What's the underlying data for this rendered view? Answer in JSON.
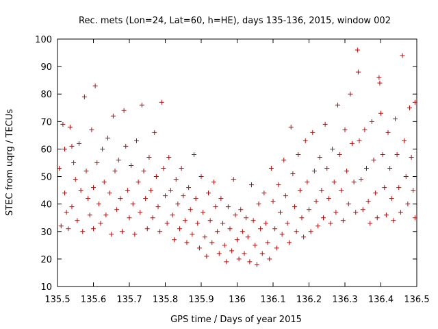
{
  "chart_data": {
    "type": "scatter",
    "title": "Rec. mets (Lon=24, Lat=60, h=HE), days 135-136, 2015, window 002",
    "xlabel": "GPS time / Days of year 2015",
    "ylabel": "STEC from uqrg / TECUs",
    "xlim": [
      135.5,
      136.5
    ],
    "ylim": [
      10,
      100
    ],
    "x_ticks": [
      135.5,
      135.6,
      135.7,
      135.8,
      135.9,
      136.0,
      136.1,
      136.2,
      136.3,
      136.4,
      136.5
    ],
    "x_tick_labels": [
      "135.5",
      "135.6",
      "135.7",
      "135.8",
      "135.9",
      "136",
      "136.1",
      "136.2",
      "136.3",
      "136.4",
      "136.5"
    ],
    "y_ticks": [
      10,
      20,
      30,
      40,
      50,
      60,
      70,
      80,
      90,
      100
    ],
    "y_tick_labels": [
      "10",
      "20",
      "30",
      "40",
      "50",
      "60",
      "70",
      "80",
      "90",
      "100"
    ],
    "grid": false,
    "legend": "none",
    "marker": "+",
    "color": "#cc0000",
    "series": [
      {
        "points": [
          [
            135.505,
            53
          ],
          [
            135.51,
            32
          ],
          [
            135.515,
            69
          ],
          [
            135.52,
            60
          ],
          [
            135.52,
            44
          ],
          [
            135.525,
            37
          ],
          [
            135.53,
            31
          ],
          [
            135.535,
            68
          ],
          [
            135.54,
            61
          ],
          [
            135.54,
            39
          ],
          [
            135.545,
            55
          ],
          [
            135.55,
            49
          ],
          [
            135.555,
            34
          ],
          [
            135.56,
            62
          ],
          [
            135.565,
            45
          ],
          [
            135.57,
            30
          ],
          [
            135.575,
            79
          ],
          [
            135.58,
            52
          ],
          [
            135.585,
            42
          ],
          [
            135.59,
            36
          ],
          [
            135.595,
            67
          ],
          [
            135.6,
            46
          ],
          [
            135.6,
            31
          ],
          [
            135.605,
            83
          ],
          [
            135.61,
            55
          ],
          [
            135.615,
            40
          ],
          [
            135.62,
            33
          ],
          [
            135.625,
            60
          ],
          [
            135.63,
            48
          ],
          [
            135.635,
            36
          ],
          [
            135.64,
            64
          ],
          [
            135.645,
            44
          ],
          [
            135.65,
            29
          ],
          [
            135.655,
            72
          ],
          [
            135.66,
            52
          ],
          [
            135.665,
            38
          ],
          [
            135.67,
            56
          ],
          [
            135.675,
            42
          ],
          [
            135.68,
            30
          ],
          [
            135.685,
            74
          ],
          [
            135.69,
            61
          ],
          [
            135.695,
            45
          ],
          [
            135.7,
            35
          ],
          [
            135.705,
            54
          ],
          [
            135.71,
            40
          ],
          [
            135.715,
            29
          ],
          [
            135.72,
            63
          ],
          [
            135.725,
            48
          ],
          [
            135.73,
            37
          ],
          [
            135.735,
            76
          ],
          [
            135.74,
            52
          ],
          [
            135.745,
            42
          ],
          [
            135.75,
            31
          ],
          [
            135.755,
            57
          ],
          [
            135.76,
            45
          ],
          [
            135.765,
            35
          ],
          [
            135.77,
            66
          ],
          [
            135.775,
            50
          ],
          [
            135.78,
            39
          ],
          [
            135.785,
            30
          ],
          [
            135.79,
            77
          ],
          [
            135.795,
            53
          ],
          [
            135.8,
            43
          ],
          [
            135.805,
            33
          ],
          [
            135.81,
            57
          ],
          [
            135.815,
            45
          ],
          [
            135.82,
            36
          ],
          [
            135.825,
            27
          ],
          [
            135.83,
            49
          ],
          [
            135.835,
            40
          ],
          [
            135.84,
            31
          ],
          [
            135.845,
            53
          ],
          [
            135.85,
            43
          ],
          [
            135.855,
            34
          ],
          [
            135.86,
            26
          ],
          [
            135.865,
            46
          ],
          [
            135.87,
            38
          ],
          [
            135.875,
            29
          ],
          [
            135.88,
            58
          ],
          [
            135.885,
            42
          ],
          [
            135.89,
            33
          ],
          [
            135.895,
            24
          ],
          [
            135.9,
            50
          ],
          [
            135.905,
            37
          ],
          [
            135.91,
            28
          ],
          [
            135.915,
            21
          ],
          [
            135.92,
            44
          ],
          [
            135.925,
            34
          ],
          [
            135.93,
            26
          ],
          [
            135.935,
            48
          ],
          [
            135.94,
            39
          ],
          [
            135.945,
            30
          ],
          [
            135.95,
            22
          ],
          [
            135.955,
            42
          ],
          [
            135.96,
            33
          ],
          [
            135.965,
            25
          ],
          [
            135.97,
            19
          ],
          [
            135.975,
            39
          ],
          [
            135.98,
            31
          ],
          [
            135.985,
            23
          ],
          [
            135.99,
            49
          ],
          [
            135.995,
            36
          ],
          [
            136.0,
            27
          ],
          [
            136.005,
            20
          ],
          [
            136.01,
            38
          ],
          [
            136.015,
            30
          ],
          [
            136.02,
            22
          ],
          [
            136.025,
            35
          ],
          [
            136.03,
            28
          ],
          [
            136.035,
            19
          ],
          [
            136.04,
            47
          ],
          [
            136.045,
            34
          ],
          [
            136.05,
            25
          ],
          [
            136.055,
            18
          ],
          [
            136.06,
            40
          ],
          [
            136.065,
            31
          ],
          [
            136.07,
            22
          ],
          [
            136.075,
            44
          ],
          [
            136.08,
            33
          ],
          [
            136.085,
            26
          ],
          [
            136.09,
            20
          ],
          [
            136.095,
            53
          ],
          [
            136.1,
            41
          ],
          [
            136.105,
            31
          ],
          [
            136.11,
            24
          ],
          [
            136.115,
            47
          ],
          [
            136.12,
            37
          ],
          [
            136.125,
            29
          ],
          [
            136.13,
            56
          ],
          [
            136.135,
            43
          ],
          [
            136.14,
            33
          ],
          [
            136.145,
            26
          ],
          [
            136.15,
            68
          ],
          [
            136.155,
            51
          ],
          [
            136.16,
            39
          ],
          [
            136.165,
            30
          ],
          [
            136.17,
            58
          ],
          [
            136.175,
            45
          ],
          [
            136.18,
            35
          ],
          [
            136.185,
            28
          ],
          [
            136.19,
            63
          ],
          [
            136.195,
            48
          ],
          [
            136.2,
            38
          ],
          [
            136.205,
            30
          ],
          [
            136.21,
            66
          ],
          [
            136.215,
            52
          ],
          [
            136.22,
            41
          ],
          [
            136.225,
            32
          ],
          [
            136.23,
            57
          ],
          [
            136.235,
            45
          ],
          [
            136.24,
            35
          ],
          [
            136.245,
            69
          ],
          [
            136.25,
            53
          ],
          [
            136.255,
            42
          ],
          [
            136.26,
            33
          ],
          [
            136.265,
            60
          ],
          [
            136.27,
            48
          ],
          [
            136.275,
            37
          ],
          [
            136.28,
            76
          ],
          [
            136.285,
            58
          ],
          [
            136.29,
            45
          ],
          [
            136.295,
            34
          ],
          [
            136.3,
            67
          ],
          [
            136.305,
            52
          ],
          [
            136.31,
            40
          ],
          [
            136.315,
            80
          ],
          [
            136.32,
            62
          ],
          [
            136.325,
            48
          ],
          [
            136.33,
            37
          ],
          [
            136.335,
            96
          ],
          [
            136.337,
            88
          ],
          [
            136.34,
            63
          ],
          [
            136.345,
            49
          ],
          [
            136.35,
            38
          ],
          [
            136.355,
            67
          ],
          [
            136.36,
            53
          ],
          [
            136.365,
            41
          ],
          [
            136.37,
            33
          ],
          [
            136.375,
            70
          ],
          [
            136.38,
            56
          ],
          [
            136.385,
            44
          ],
          [
            136.39,
            35
          ],
          [
            136.395,
            86
          ],
          [
            136.397,
            84
          ],
          [
            136.4,
            73
          ],
          [
            136.405,
            58
          ],
          [
            136.41,
            46
          ],
          [
            136.415,
            36
          ],
          [
            136.42,
            66
          ],
          [
            136.425,
            53
          ],
          [
            136.43,
            42
          ],
          [
            136.435,
            34
          ],
          [
            136.44,
            71
          ],
          [
            136.445,
            58
          ],
          [
            136.45,
            46
          ],
          [
            136.455,
            37
          ],
          [
            136.46,
            94
          ],
          [
            136.465,
            63
          ],
          [
            136.47,
            50
          ],
          [
            136.475,
            40
          ],
          [
            136.48,
            75
          ],
          [
            136.485,
            57
          ],
          [
            136.49,
            45
          ],
          [
            136.495,
            35
          ],
          [
            136.495,
            77
          ]
        ]
      }
    ]
  }
}
